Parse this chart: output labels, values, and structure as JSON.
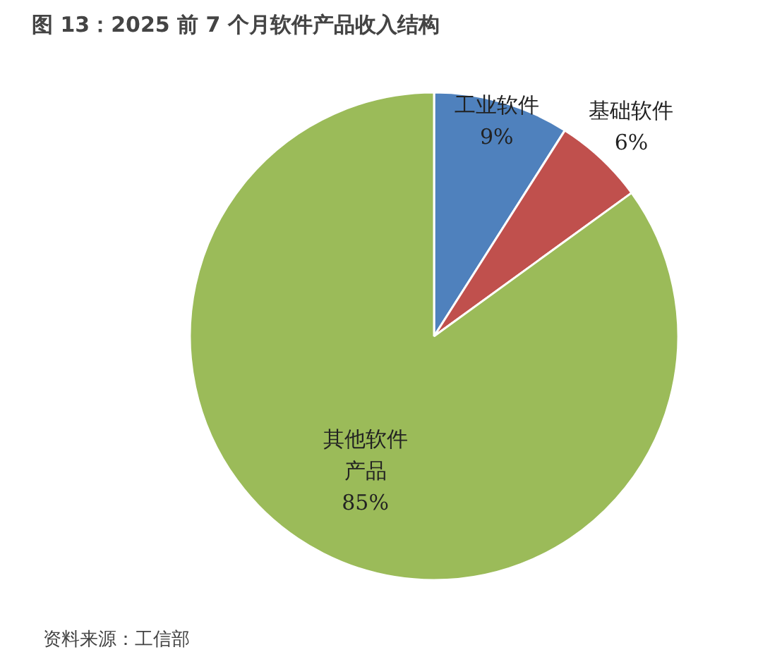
{
  "chart_data": {
    "type": "pie",
    "title": "图 13：2025 前 7 个月软件产品收入结构",
    "categories": [
      "工业软件",
      "基础软件",
      "其他软件产品"
    ],
    "values": [
      9,
      6,
      85
    ],
    "colors": [
      "#4f81bd",
      "#c0504d",
      "#9bbb59"
    ],
    "value_labels": [
      "9%",
      "6%",
      "85%"
    ],
    "annotations": [
      "资料来源：工信部"
    ]
  }
}
